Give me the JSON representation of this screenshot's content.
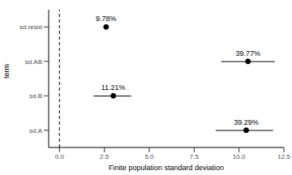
{
  "chart_data": {
    "type": "dot_interval",
    "categories": [
      "sd.A",
      "sd.B",
      "sd.AB",
      "sd.resid"
    ],
    "values": [
      10.4,
      3.0,
      10.5,
      2.6
    ],
    "lower": [
      8.7,
      1.9,
      9.0,
      2.5
    ],
    "upper": [
      11.9,
      4.0,
      12.0,
      2.7
    ],
    "annotations": [
      "39.29%",
      "11.21%",
      "39.77%",
      "9.78%"
    ],
    "orientation": "horizontal",
    "x_label": "Finite population standard deviation",
    "y_label": "term",
    "xlim": [
      -0.6,
      12.5
    ],
    "xticks": [
      {
        "value": 0,
        "label": "0.0"
      },
      {
        "value": 2.5,
        "label": "2.5"
      },
      {
        "value": 5,
        "label": "5.0"
      },
      {
        "value": 7.5,
        "label": "7.5"
      },
      {
        "value": 10,
        "label": "10.0"
      },
      {
        "value": 12.5,
        "label": "12.5"
      }
    ],
    "reference_x": 0,
    "color": "#000000",
    "grid": false
  }
}
